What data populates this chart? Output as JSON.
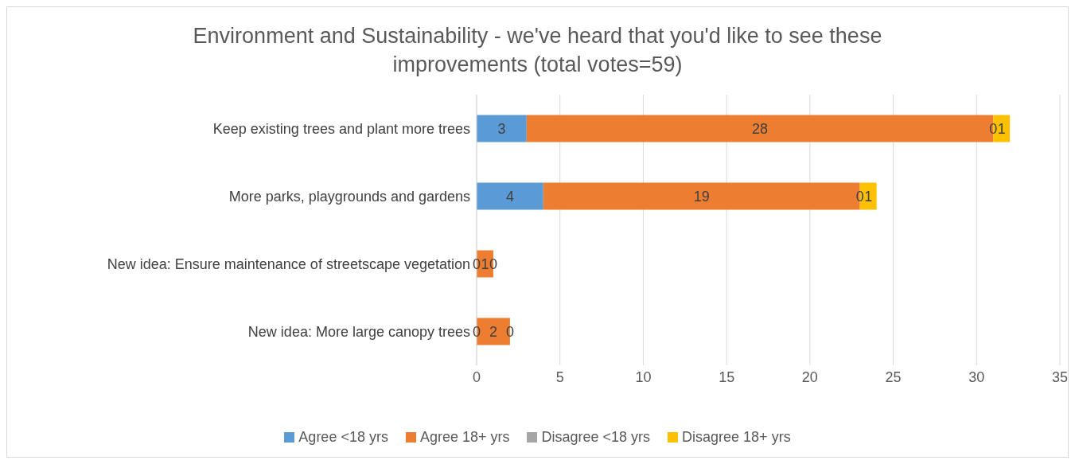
{
  "chart_data": {
    "type": "bar",
    "orientation": "horizontal",
    "stacked": true,
    "title": "Environment and Sustainability - we've heard that you'd like to see these improvements (total votes=59)",
    "categories": [
      "Keep existing trees and plant more trees",
      "More parks, playgrounds and gardens",
      "New idea: Ensure maintenance of streetscape vegetation",
      "New idea: More large canopy trees"
    ],
    "series": [
      {
        "name": "Agree <18 yrs",
        "color": "#5b9bd5",
        "values": [
          3,
          4,
          0,
          0
        ],
        "value_labels": [
          "3",
          "4",
          "0",
          "0"
        ]
      },
      {
        "name": "Agree 18+ yrs",
        "color": "#ed7d31",
        "values": [
          28,
          19,
          1,
          2
        ],
        "value_labels": [
          "28",
          "19",
          "1",
          "2"
        ]
      },
      {
        "name": "Disagree <18 yrs",
        "color": "#a5a5a5",
        "values": [
          0,
          0,
          0,
          0
        ],
        "value_labels": [
          "0",
          "0",
          "0",
          "0"
        ]
      },
      {
        "name": "Disagree 18+ yrs",
        "color": "#ffc000",
        "values": [
          1,
          1,
          0,
          0
        ],
        "value_labels": [
          "1",
          "1",
          null,
          null
        ]
      }
    ],
    "xlim": [
      0,
      35
    ],
    "xticks": [
      0,
      5,
      10,
      15,
      20,
      25,
      30,
      35
    ],
    "grid": "x",
    "legend": "bottom"
  }
}
